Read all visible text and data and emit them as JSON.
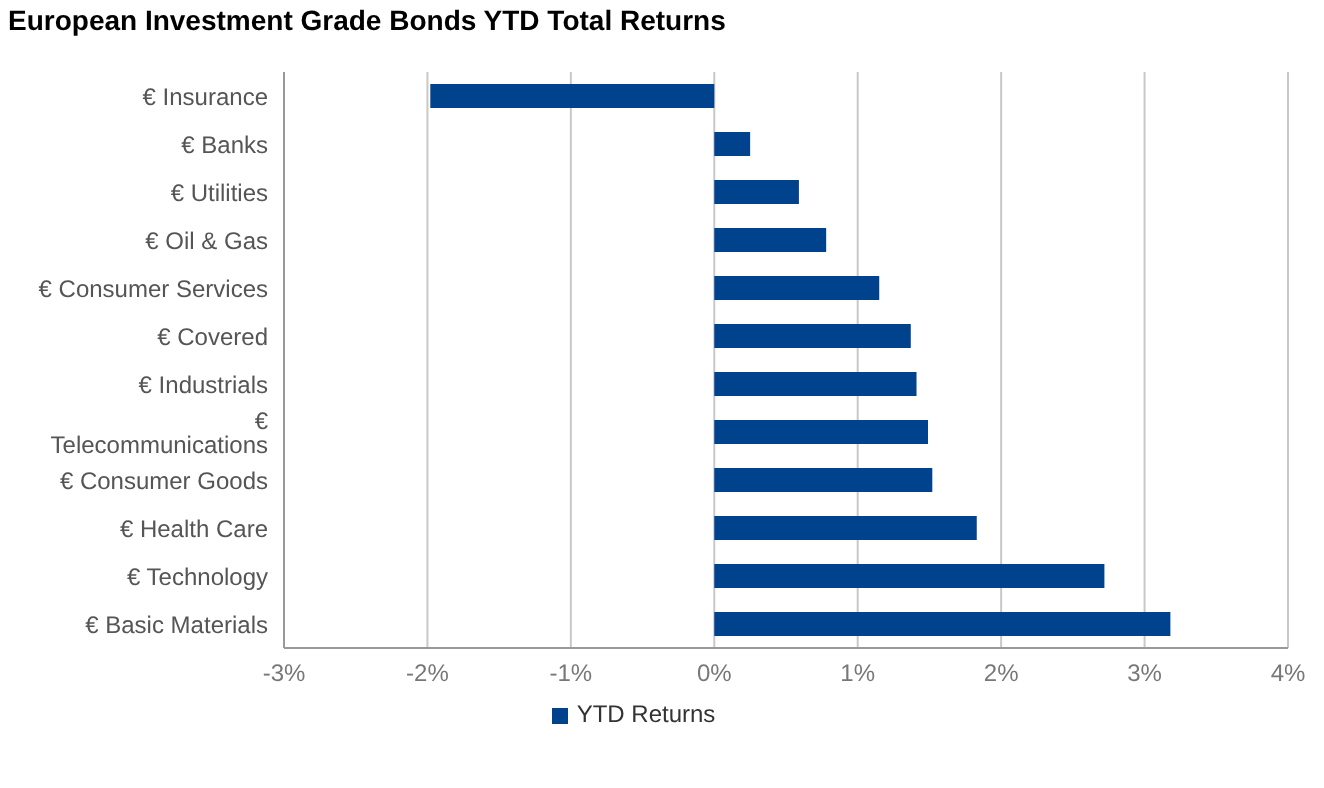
{
  "chart_data": {
    "type": "bar",
    "orientation": "horizontal",
    "title": "European Investment Grade Bonds YTD Total Returns",
    "categories": [
      "€ Insurance",
      "€ Banks",
      "€ Utilities",
      "€ Oil & Gas",
      "€ Consumer Services",
      "€ Covered",
      "€ Industrials",
      "€ Telecommunications",
      "€ Consumer Goods",
      "€ Health Care",
      "€ Technology",
      "€ Basic Materials"
    ],
    "series": [
      {
        "name": "YTD Returns",
        "color": "#00428c",
        "values": [
          -1.98,
          0.25,
          0.59,
          0.78,
          1.15,
          1.37,
          1.41,
          1.49,
          1.52,
          1.83,
          2.72,
          3.18
        ]
      }
    ],
    "xlim": [
      -3,
      4
    ],
    "xticks": [
      {
        "value": -3,
        "label": "-3%"
      },
      {
        "value": -2,
        "label": "-2%"
      },
      {
        "value": -1,
        "label": "-1%"
      },
      {
        "value": 0,
        "label": "0%"
      },
      {
        "value": 1,
        "label": "1%"
      },
      {
        "value": 2,
        "label": "2%"
      },
      {
        "value": 3,
        "label": "3%"
      },
      {
        "value": 4,
        "label": "4%"
      }
    ],
    "grid": "x",
    "legend": "bottom"
  }
}
